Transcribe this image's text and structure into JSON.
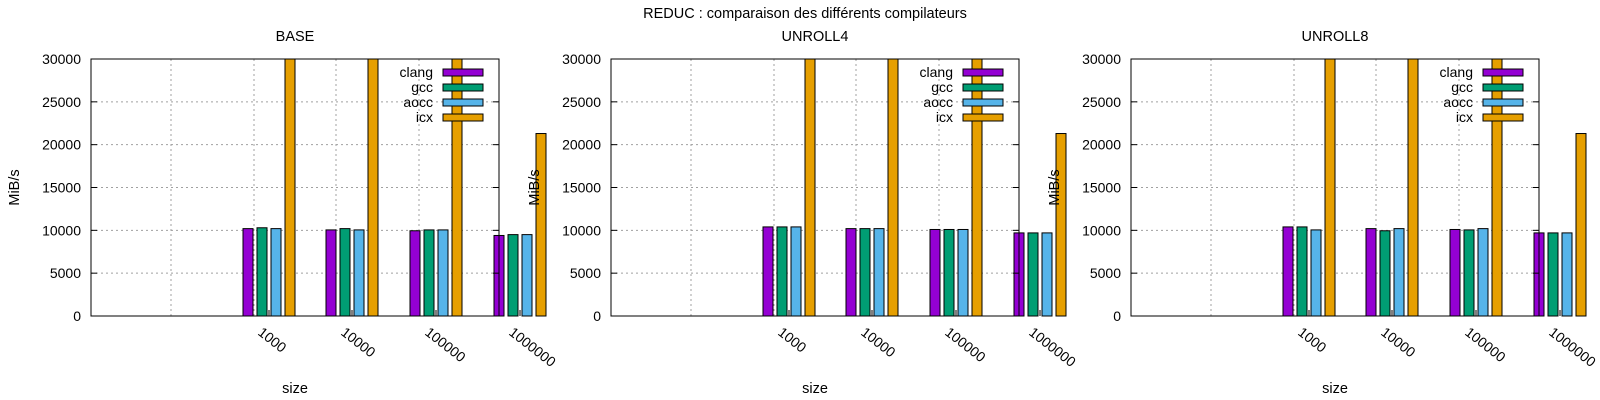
{
  "figure": {
    "suptitle": "REDUC : comparaison des différents compilateurs"
  },
  "colors": {
    "clang": "#9400d3",
    "gcc": "#009e73",
    "aocc": "#56b4e9",
    "icx": "#e69f00"
  },
  "chart_data": [
    {
      "type": "bar",
      "title": "BASE",
      "xlabel": "size",
      "ylabel": "MiB/s",
      "ylim": [
        0,
        30000
      ],
      "yticks": [
        "0",
        "5000",
        "10000",
        "15000",
        "20000",
        "25000",
        "30000"
      ],
      "categories": [
        "1000",
        "10000",
        "100000",
        "1000000"
      ],
      "grid": true,
      "legend_position": "top-right",
      "series": [
        {
          "name": "clang",
          "values": [
            10200,
            10050,
            9950,
            9400
          ]
        },
        {
          "name": "gcc",
          "values": [
            10300,
            10200,
            10050,
            9500
          ]
        },
        {
          "name": "aocc",
          "values": [
            10200,
            10050,
            10050,
            9500
          ]
        },
        {
          "name": "icx",
          "values": [
            30000,
            30000,
            30000,
            21300
          ]
        }
      ]
    },
    {
      "type": "bar",
      "title": "UNROLL4",
      "xlabel": "size",
      "ylabel": "MiB/s",
      "ylim": [
        0,
        30000
      ],
      "yticks": [
        "0",
        "5000",
        "10000",
        "15000",
        "20000",
        "25000",
        "30000"
      ],
      "categories": [
        "1000",
        "10000",
        "100000",
        "1000000"
      ],
      "grid": true,
      "legend_position": "top-right",
      "series": [
        {
          "name": "clang",
          "values": [
            10400,
            10200,
            10100,
            9700
          ]
        },
        {
          "name": "gcc",
          "values": [
            10400,
            10200,
            10100,
            9700
          ]
        },
        {
          "name": "aocc",
          "values": [
            10400,
            10200,
            10100,
            9700
          ]
        },
        {
          "name": "icx",
          "values": [
            30000,
            30000,
            30000,
            21300
          ]
        }
      ]
    },
    {
      "type": "bar",
      "title": "UNROLL8",
      "xlabel": "size",
      "ylabel": "MiB/s",
      "ylim": [
        0,
        30000
      ],
      "yticks": [
        "0",
        "5000",
        "10000",
        "15000",
        "20000",
        "25000",
        "30000"
      ],
      "categories": [
        "1000",
        "10000",
        "100000",
        "1000000"
      ],
      "grid": true,
      "legend_position": "top-right",
      "series": [
        {
          "name": "clang",
          "values": [
            10400,
            10200,
            10100,
            9700
          ]
        },
        {
          "name": "gcc",
          "values": [
            10400,
            9950,
            10050,
            9700
          ]
        },
        {
          "name": "aocc",
          "values": [
            10050,
            10200,
            10200,
            9700
          ]
        },
        {
          "name": "icx",
          "values": [
            30000,
            30000,
            30000,
            21300
          ]
        }
      ]
    }
  ]
}
